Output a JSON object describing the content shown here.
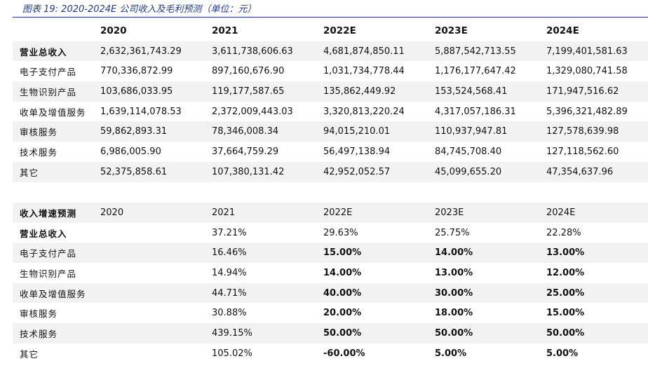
{
  "title": "图表 19:  2020-2024E 公司收入及毛利预测（单位：元）",
  "table1": {
    "headers": [
      "",
      "2020",
      "2021",
      "2022E",
      "2023E",
      "2024E"
    ],
    "rows": [
      {
        "label": "营业总收入",
        "values": [
          "2,632,361,743.29",
          "3,611,738,606.63",
          "4,681,874,850.11",
          "5,887,542,713.55",
          "7,199,401,581.63"
        ]
      },
      {
        "label": "电子支付产品",
        "values": [
          "770,336,872.99",
          "897,160,676.90",
          "1,031,734,778.44",
          "1,176,177,647.42",
          "1,329,080,741.58"
        ]
      },
      {
        "label": "生物识别产品",
        "values": [
          "103,686,033.95",
          "119,177,587.65",
          "135,862,449.92",
          "153,524,568.41",
          "171,947,516.62"
        ]
      },
      {
        "label": "收单及增值服务",
        "values": [
          "1,639,114,078.53",
          "2,372,009,443.03",
          "3,320,813,220.24",
          "4,317,057,186.31",
          "5,396,321,482.89"
        ]
      },
      {
        "label": "审核服务",
        "values": [
          "59,862,893.31",
          "78,346,008.34",
          "94,015,210.01",
          "110,937,947.81",
          "127,578,639.98"
        ]
      },
      {
        "label": "技术服务",
        "values": [
          "6,986,005.90",
          "37,664,759.29",
          "56,497,138.94",
          "84,745,708.40",
          "127,118,562.60"
        ]
      },
      {
        "label": "其它",
        "values": [
          "52,375,858.61",
          "107,380,131.42",
          "42,952,052.57",
          "45,099,655.20",
          "47,354,637.96"
        ]
      }
    ]
  },
  "table2": {
    "headers": [
      "收入增速预测",
      "2020",
      "2021",
      "2022E",
      "2023E",
      "2024E"
    ],
    "rows": [
      {
        "label": "营业总收入",
        "values": [
          "",
          "37.21%",
          "29.63%",
          "25.75%",
          "22.28%"
        ]
      },
      {
        "label": "电子支付产品",
        "values": [
          "",
          "16.46%",
          "15.00%",
          "14.00%",
          "13.00%"
        ]
      },
      {
        "label": "生物识别产品",
        "values": [
          "",
          "14.94%",
          "14.00%",
          "13.00%",
          "12.00%"
        ]
      },
      {
        "label": "收单及增值服务",
        "values": [
          "",
          "44.71%",
          "40.00%",
          "30.00%",
          "25.00%"
        ]
      },
      {
        "label": "审核服务",
        "values": [
          "",
          "30.88%",
          "20.00%",
          "18.00%",
          "15.00%"
        ]
      },
      {
        "label": "技术服务",
        "values": [
          "",
          "439.15%",
          "50.00%",
          "50.00%",
          "50.00%"
        ]
      },
      {
        "label": "其它",
        "values": [
          "",
          "105.02%",
          "-60.00%",
          "5.00%",
          "5.00%"
        ]
      }
    ]
  }
}
